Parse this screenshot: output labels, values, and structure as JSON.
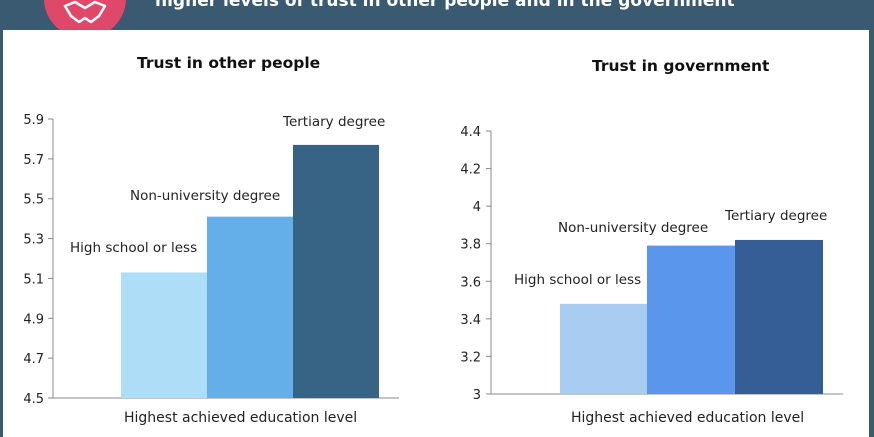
{
  "banner": {
    "title": "higher levels of trust in other people and in the government"
  },
  "logo": {
    "icon": "handshake-icon",
    "color": "#e0486a"
  },
  "colors": {
    "banner": "#3a5a72",
    "axis": "#888888",
    "text": "#222222"
  },
  "chart_data": [
    {
      "type": "bar",
      "title": "Trust in other people",
      "xlabel": "Highest achieved education level",
      "ylabel": "",
      "ylim": [
        4.5,
        5.9
      ],
      "yticks": [
        "5.9",
        "5.7",
        "5.5",
        "5.3",
        "5.1",
        "4.9",
        "4.7",
        "4.5"
      ],
      "categories": [
        "High school or less",
        "Non-university degree",
        "Tertiary degree"
      ],
      "values": [
        5.13,
        5.41,
        5.77
      ],
      "colors": [
        "#aeddf7",
        "#64aeea",
        "#376384"
      ],
      "grid": false,
      "legend": "none"
    },
    {
      "type": "bar",
      "title": "Trust in government",
      "xlabel": "Highest achieved education level",
      "ylabel": "",
      "ylim": [
        3,
        4.4
      ],
      "yticks": [
        "4.4",
        "4.2",
        "4",
        "3.8",
        "3.6",
        "3.4",
        "3.2",
        "3"
      ],
      "categories": [
        "High school or less",
        "Non-university degree",
        "Tertiary degree"
      ],
      "values": [
        3.48,
        3.79,
        3.82
      ],
      "colors": [
        "#a9cdf2",
        "#5996ec",
        "#355e96"
      ],
      "grid": false,
      "legend": "none"
    }
  ]
}
